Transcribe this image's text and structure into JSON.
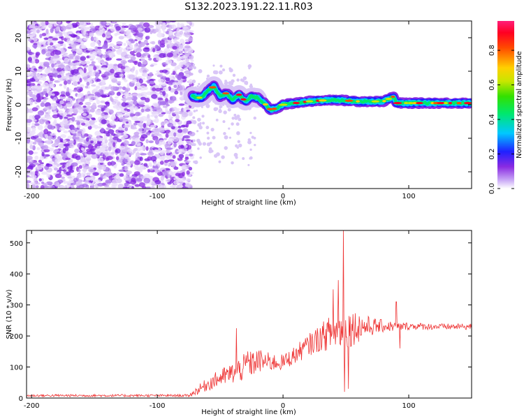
{
  "title": "S132.2023.191.22.11.R03",
  "chart_data": [
    {
      "type": "heatmap",
      "xlabel": "Height of straight line (km)",
      "ylabel": "Frequency (Hz)",
      "xlim": [
        -204,
        150
      ],
      "ylim": [
        -25,
        25
      ],
      "xticks": [
        -200,
        -100,
        0,
        100
      ],
      "yticks": [
        -20,
        -10,
        0,
        10,
        20
      ],
      "colorbar": {
        "label": "Normalized spectral amplitude",
        "ticks": [
          "0.0",
          "0.2",
          "0.4",
          "0.6",
          "0.8"
        ],
        "tick_values": [
          0.0,
          0.2,
          0.4,
          0.6,
          0.8
        ],
        "range": [
          0.0,
          0.97
        ]
      },
      "noise_region": {
        "x_from": -204,
        "x_to": -72,
        "freq_from": -25,
        "freq_to": 25
      },
      "signal_ridge": {
        "x": [
          -72,
          -65,
          -60,
          -55,
          -50,
          -45,
          -40,
          -35,
          -30,
          -25,
          -20,
          -15,
          -10,
          -5,
          0,
          10,
          20,
          40,
          60,
          80,
          88,
          90,
          100,
          120,
          150
        ],
        "freq": [
          2.5,
          2.0,
          4.0,
          5.5,
          2.5,
          3.5,
          1.5,
          3.0,
          1.0,
          2.5,
          2.0,
          0.5,
          -1.5,
          -1.0,
          0.0,
          0.5,
          1.0,
          1.5,
          1.0,
          1.0,
          2.5,
          0.5,
          0.5,
          0.5,
          0.5
        ]
      }
    },
    {
      "type": "line",
      "xlabel": "Height of straight line (km)",
      "ylabel": "SNR (10 * v/v)",
      "xlim": [
        -204,
        150
      ],
      "ylim": [
        0,
        540
      ],
      "xticks": [
        -200,
        -100,
        0,
        100
      ],
      "yticks": [
        0,
        100,
        200,
        300,
        400,
        500
      ],
      "color": "#ee3333",
      "series_envelope": {
        "x": [
          -204,
          -75,
          -70,
          -60,
          -50,
          -40,
          -30,
          -20,
          -10,
          0,
          10,
          20,
          30,
          40,
          50,
          60,
          70,
          80,
          90,
          100,
          120,
          150
        ],
        "base": [
          8,
          8,
          20,
          45,
          65,
          80,
          100,
          120,
          115,
          115,
          140,
          170,
          195,
          215,
          225,
          230,
          230,
          232,
          230,
          232,
          230,
          230
        ],
        "amplitude": [
          4,
          4,
          12,
          22,
          28,
          35,
          45,
          40,
          30,
          25,
          30,
          35,
          45,
          60,
          70,
          50,
          30,
          20,
          15,
          12,
          10,
          10
        ]
      },
      "spikes": [
        {
          "x": -37,
          "y": 225
        },
        {
          "x": -28,
          "y": 150
        },
        {
          "x": 40,
          "y": 350
        },
        {
          "x": 44,
          "y": 380
        },
        {
          "x": 48,
          "y": 540
        },
        {
          "x": 49,
          "y": 20
        },
        {
          "x": 52,
          "y": 30
        },
        {
          "x": 90,
          "y": 310
        },
        {
          "x": 93,
          "y": 160
        }
      ]
    }
  ]
}
